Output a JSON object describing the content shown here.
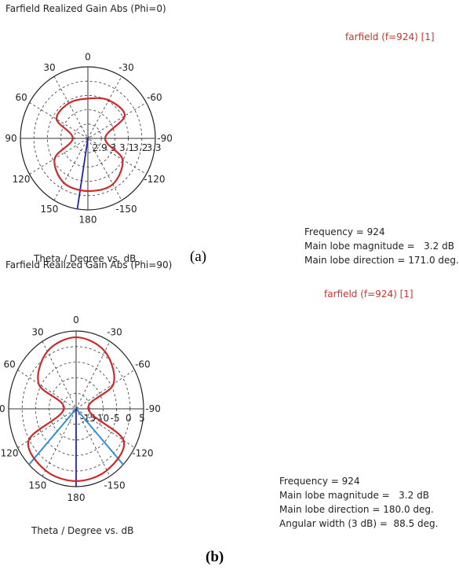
{
  "panels": [
    {
      "title": "Farfield Realized Gain Abs (Phi=0)",
      "legend": "farfield (f=924) [1]",
      "xlabel": "Theta / Degree vs. dB",
      "letter": "(a)",
      "info": {
        "frequency": "Frequency = 924",
        "magnitude": "Main lobe magnitude =   3.2 dB",
        "direction": "Main lobe direction = 171.0 deg."
      }
    },
    {
      "title": "Farfield Realized Gain Abs (Phi=90)",
      "legend": "farfield (f=924) [1]",
      "xlabel": "Theta / Degree vs. dB",
      "letter": "(b)",
      "info": {
        "frequency": "Frequency = 924",
        "magnitude": "Main lobe magnitude =   3.2 dB",
        "direction": "Main lobe direction = 180.0 deg.",
        "width": "Angular width (3 dB) =  88.5 deg."
      }
    }
  ],
  "chart_data": [
    {
      "type": "polar",
      "title": "Farfield Realized Gain Abs (Phi=0)",
      "xlabel": "Theta / Degree vs. dB",
      "angle_labels": [
        {
          "angle": 0,
          "label": "0"
        },
        {
          "angle": 30,
          "label": "30"
        },
        {
          "angle": 60,
          "label": "60"
        },
        {
          "angle": 90,
          "label": "90"
        },
        {
          "angle": 120,
          "label": "120"
        },
        {
          "angle": 150,
          "label": "150"
        },
        {
          "angle": 180,
          "label": "180"
        },
        {
          "angle": -150,
          "label": "-150"
        },
        {
          "angle": -120,
          "label": "-120"
        },
        {
          "angle": -90,
          "label": "-90"
        },
        {
          "angle": -60,
          "label": "-60"
        },
        {
          "angle": -30,
          "label": "-30"
        }
      ],
      "radial_ticks": [
        "2.9",
        "3",
        "3.1",
        "3.2",
        "3.3"
      ],
      "rlim": [
        2.8,
        3.3
      ],
      "series": [
        {
          "name": "farfield (f=924) [1]",
          "color": "#cc2a2a",
          "points": [
            [
              0,
              3.078
            ],
            [
              30,
              3.083
            ],
            [
              60,
              3.068
            ],
            [
              90,
              2.912
            ],
            [
              120,
              3.084
            ],
            [
              150,
              3.158
            ],
            [
              180,
              3.168
            ],
            [
              -150,
              3.17
            ],
            [
              -120,
              3.096
            ],
            [
              -90,
              2.928
            ],
            [
              -60,
              3.115
            ],
            [
              -30,
              3.108
            ]
          ]
        }
      ],
      "main_lobe_direction": 171.0,
      "main_lobe_color": "#2424a8"
    },
    {
      "type": "polar",
      "title": "Farfield Realized Gain Abs (Phi=90)",
      "xlabel": "Theta / Degree vs. dB",
      "angle_labels": [
        {
          "angle": 0,
          "label": "0"
        },
        {
          "angle": 30,
          "label": "30"
        },
        {
          "angle": 60,
          "label": "60"
        },
        {
          "angle": 90,
          "label": "90"
        },
        {
          "angle": 120,
          "label": "120"
        },
        {
          "angle": 150,
          "label": "150"
        },
        {
          "angle": 180,
          "label": "180"
        },
        {
          "angle": -150,
          "label": "-150"
        },
        {
          "angle": -120,
          "label": "-120"
        },
        {
          "angle": -90,
          "label": "-90"
        },
        {
          "angle": -60,
          "label": "-60"
        },
        {
          "angle": -30,
          "label": "-30"
        }
      ],
      "radial_ticks": [
        "-15",
        "-10",
        "-5",
        "0",
        "5"
      ],
      "rlim": [
        -20,
        5
      ],
      "series": [
        {
          "name": "farfield (f=924) [1]",
          "color": "#cc2a2a",
          "points": [
            [
              0,
              3.0
            ],
            [
              30,
              1.3
            ],
            [
              60,
              -4.0
            ],
            [
              90,
              -15.5
            ],
            [
              120,
              0.3
            ],
            [
              150,
              2.8
            ],
            [
              180,
              3.2
            ],
            [
              -150,
              2.8
            ],
            [
              -120,
              0.3
            ],
            [
              -90,
              -15.5
            ],
            [
              -60,
              -4.0
            ],
            [
              -30,
              1.3
            ]
          ]
        }
      ],
      "main_lobe_direction": 180.0,
      "main_lobe_color": "#2424a8",
      "beamwidth_bounds": [
        135.75,
        -135.75
      ],
      "beamwidth_color": "#2f8fd8"
    }
  ]
}
